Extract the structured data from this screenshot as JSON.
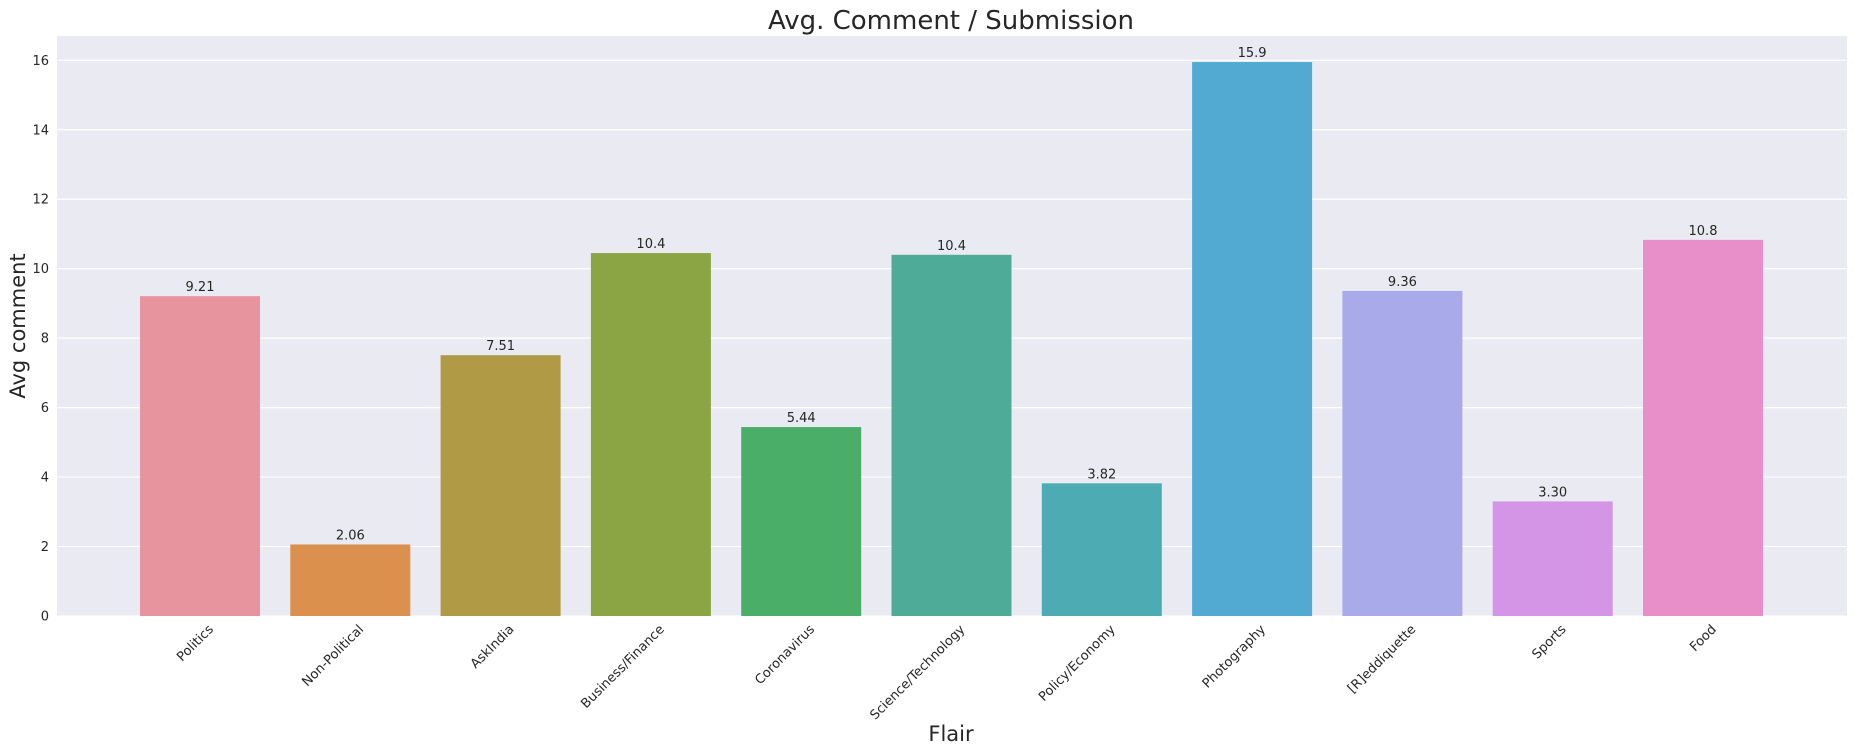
{
  "chart_data": {
    "type": "bar",
    "title": "Avg. Comment / Submission",
    "xlabel": "Flair",
    "ylabel": "Avg comment",
    "categories": [
      "Politics",
      "Non-Political",
      "AskIndia",
      "Business/Finance",
      "Coronavirus",
      "Science/Technology",
      "Policy/Economy",
      "Photography",
      "[R]eddiquette",
      "Sports",
      "Food"
    ],
    "values": [
      9.21,
      2.06,
      7.51,
      10.45,
      5.44,
      10.4,
      3.82,
      15.95,
      9.36,
      3.3,
      10.83
    ],
    "value_labels": [
      "9.21",
      "2.06",
      "7.51",
      "10.4",
      "5.44",
      "10.4",
      "3.82",
      "15.9",
      "9.36",
      "3.30",
      "10.8"
    ],
    "colors": [
      "#e8949f",
      "#dc904e",
      "#b19a46",
      "#8ca544",
      "#4aae68",
      "#4dab97",
      "#4dabb3",
      "#52aad3",
      "#a8aae9",
      "#d595e6",
      "#e88ec8"
    ],
    "ylim": [
      0,
      16.7
    ],
    "yticks": [
      "0",
      "2",
      "4",
      "6",
      "8",
      "10",
      "12",
      "14",
      "16"
    ],
    "grid": true,
    "background": "#eaeaf2",
    "grid_color": "#ffffff"
  }
}
